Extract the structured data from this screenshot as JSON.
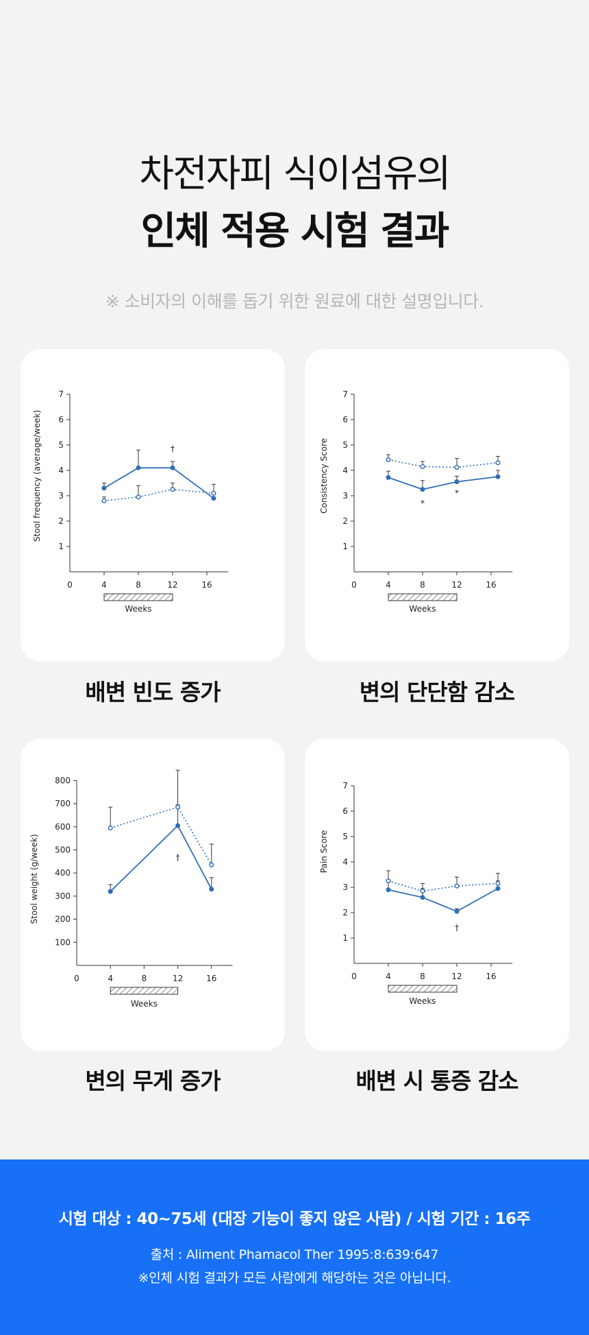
{
  "header": {
    "title_line1": "차전자피 식이섬유의",
    "title_line2": "인체 적용 시험 결과",
    "disclaimer": "※ 소비자의 이해를 돕기 위한 원료에 대한 설명입니다."
  },
  "colors": {
    "accent": "#2f6db5",
    "footer_bg": "#1770f5",
    "card_bg": "#ffffff",
    "page_bg": "#f3f3f3"
  },
  "chart_data": [
    {
      "type": "line",
      "caption": "배변 빈도 증가",
      "ylabel": "Stool frequency (average/week)",
      "xlabel": "Weeks",
      "xlim": [
        0,
        18.5
      ],
      "ylim": [
        0,
        7
      ],
      "xticks": [
        0,
        4,
        8,
        12,
        16
      ],
      "yticks": [
        1,
        2,
        3,
        4,
        5,
        6,
        7
      ],
      "treatment_period": [
        4,
        12
      ],
      "series": [
        {
          "style": "solid",
          "x": [
            4,
            8,
            12,
            16.8
          ],
          "y": [
            3.3,
            4.1,
            4.1,
            2.9
          ],
          "err": [
            0.2,
            0.7,
            0.25,
            0.15
          ]
        },
        {
          "style": "dotted",
          "x": [
            4,
            8,
            12,
            16.8
          ],
          "y": [
            2.8,
            2.95,
            3.25,
            3.1
          ],
          "err": [
            0.15,
            0.45,
            0.25,
            0.35
          ]
        }
      ],
      "annotations": [
        {
          "x": 12,
          "y": 4.75,
          "text": "†"
        }
      ]
    },
    {
      "type": "line",
      "caption": "변의 단단함 감소",
      "ylabel": "Consistency Score",
      "xlabel": "Weeks",
      "xlim": [
        0,
        18.5
      ],
      "ylim": [
        0,
        7
      ],
      "xticks": [
        0,
        4,
        8,
        12,
        16
      ],
      "yticks": [
        1,
        2,
        3,
        4,
        5,
        6,
        7
      ],
      "treatment_period": [
        4,
        12
      ],
      "series": [
        {
          "style": "solid",
          "x": [
            4,
            8,
            12,
            16.8
          ],
          "y": [
            3.72,
            3.25,
            3.55,
            3.75
          ],
          "err": [
            0.25,
            0.35,
            0.22,
            0.25
          ]
        },
        {
          "style": "dotted",
          "x": [
            4,
            8,
            12,
            16.8
          ],
          "y": [
            4.42,
            4.15,
            4.12,
            4.3
          ],
          "err": [
            0.2,
            0.2,
            0.35,
            0.25
          ]
        }
      ],
      "annotations": [
        {
          "x": 8,
          "y": 2.6,
          "text": "*"
        },
        {
          "x": 12,
          "y": 3.0,
          "text": "*"
        }
      ]
    },
    {
      "type": "line",
      "caption": "변의 무게 증가",
      "ylabel": "Stool weight (g/week)",
      "xlabel": "Weeks",
      "xlim": [
        0,
        18.5
      ],
      "ylim": [
        0,
        800
      ],
      "xticks": [
        0,
        4,
        8,
        12,
        16
      ],
      "yticks": [
        100,
        200,
        300,
        400,
        500,
        600,
        700,
        800
      ],
      "treatment_period": [
        4,
        12
      ],
      "series": [
        {
          "style": "solid",
          "x": [
            4,
            12,
            16
          ],
          "y": [
            320,
            605,
            330
          ],
          "err": [
            30,
            90,
            50
          ]
        },
        {
          "style": "dotted",
          "x": [
            4,
            12,
            16
          ],
          "y": [
            595,
            685,
            435
          ],
          "err": [
            90,
            160,
            90
          ]
        }
      ],
      "annotations": [
        {
          "x": 12,
          "y": 455,
          "text": "†"
        }
      ]
    },
    {
      "type": "line",
      "caption": "배변 시 통증 감소",
      "ylabel": "Pain Score",
      "xlabel": "Weeks",
      "xlim": [
        0,
        18.5
      ],
      "ylim": [
        0,
        7
      ],
      "xticks": [
        0,
        4,
        8,
        12,
        16
      ],
      "yticks": [
        1,
        2,
        3,
        4,
        5,
        6,
        7
      ],
      "treatment_period": [
        4,
        12
      ],
      "series": [
        {
          "style": "solid",
          "x": [
            4,
            8,
            12,
            16.8
          ],
          "y": [
            2.9,
            2.6,
            2.05,
            2.95
          ],
          "err": [
            0.4,
            0.35,
            0.1,
            0.3
          ]
        },
        {
          "style": "dotted",
          "x": [
            4,
            8,
            12,
            16.8
          ],
          "y": [
            3.25,
            2.85,
            3.05,
            3.15
          ],
          "err": [
            0.4,
            0.3,
            0.35,
            0.4
          ]
        }
      ],
      "annotations": [
        {
          "x": 12,
          "y": 1.3,
          "text": "†"
        }
      ]
    }
  ],
  "footer": {
    "line1": "시험 대상 : 40~75세 (대장 기능이 좋지 않은 사람) / 시험 기간 : 16주",
    "line2": "출처 : Aliment Phamacol Ther 1995:8:639:647",
    "line3": "※인체 시험 결과가 모든 사람에게 해당하는 것은 아닙니다."
  }
}
